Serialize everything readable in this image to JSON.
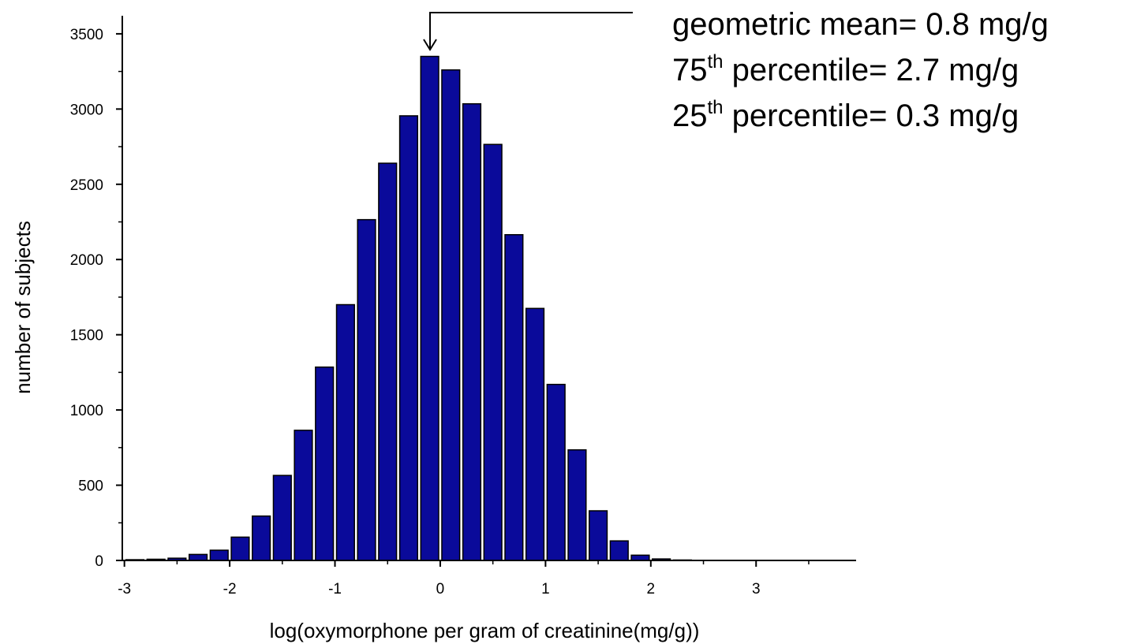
{
  "chart_data": {
    "type": "histogram",
    "xlabel": "log(oxymorphone per gram of creatinine(mg/g))",
    "ylabel": "number of subjects",
    "bins": [
      -3.0,
      -2.8,
      -2.6,
      -2.4,
      -2.2,
      -2.0,
      -1.8,
      -1.6,
      -1.4,
      -1.2,
      -1.0,
      -0.8,
      -0.6,
      -0.4,
      -0.2,
      0.0,
      0.2,
      0.4,
      0.6,
      0.8,
      1.0,
      1.2,
      1.4,
      1.6,
      1.8,
      2.0,
      2.2,
      2.4,
      2.6,
      2.8,
      3.0,
      3.2,
      3.4,
      3.6,
      3.8
    ],
    "values": [
      5,
      8,
      15,
      40,
      68,
      155,
      295,
      565,
      865,
      1285,
      1700,
      2265,
      2640,
      2955,
      3350,
      3260,
      3035,
      2765,
      2165,
      1675,
      1170,
      735,
      330,
      130,
      35,
      10,
      3,
      1,
      1,
      0,
      0,
      0,
      0,
      0
    ],
    "color": "#0a0a9a",
    "xlim": [
      -3.02,
      3.95
    ],
    "xticks": [
      -3,
      -2,
      -1,
      0,
      1,
      2,
      3
    ],
    "xminorticks": [
      -2.5,
      -1.5,
      -0.5,
      0.5,
      1.5,
      2.5,
      3.5
    ],
    "ylim": [
      0,
      3620
    ],
    "yticks": [
      0,
      500,
      1000,
      1500,
      2000,
      2500,
      3000,
      3500
    ],
    "yminorticks": [
      250,
      750,
      1250,
      1750,
      2250,
      2750,
      3250
    ],
    "annotations": [
      {
        "pre": "geometric mean= 0.8 mg/g"
      },
      {
        "pre": "75",
        "sup": "th",
        "post": " percentile= 2.7 mg/g"
      },
      {
        "pre": "25",
        "sup": "th",
        "post": " percentile= 0.3 mg/g"
      }
    ]
  }
}
